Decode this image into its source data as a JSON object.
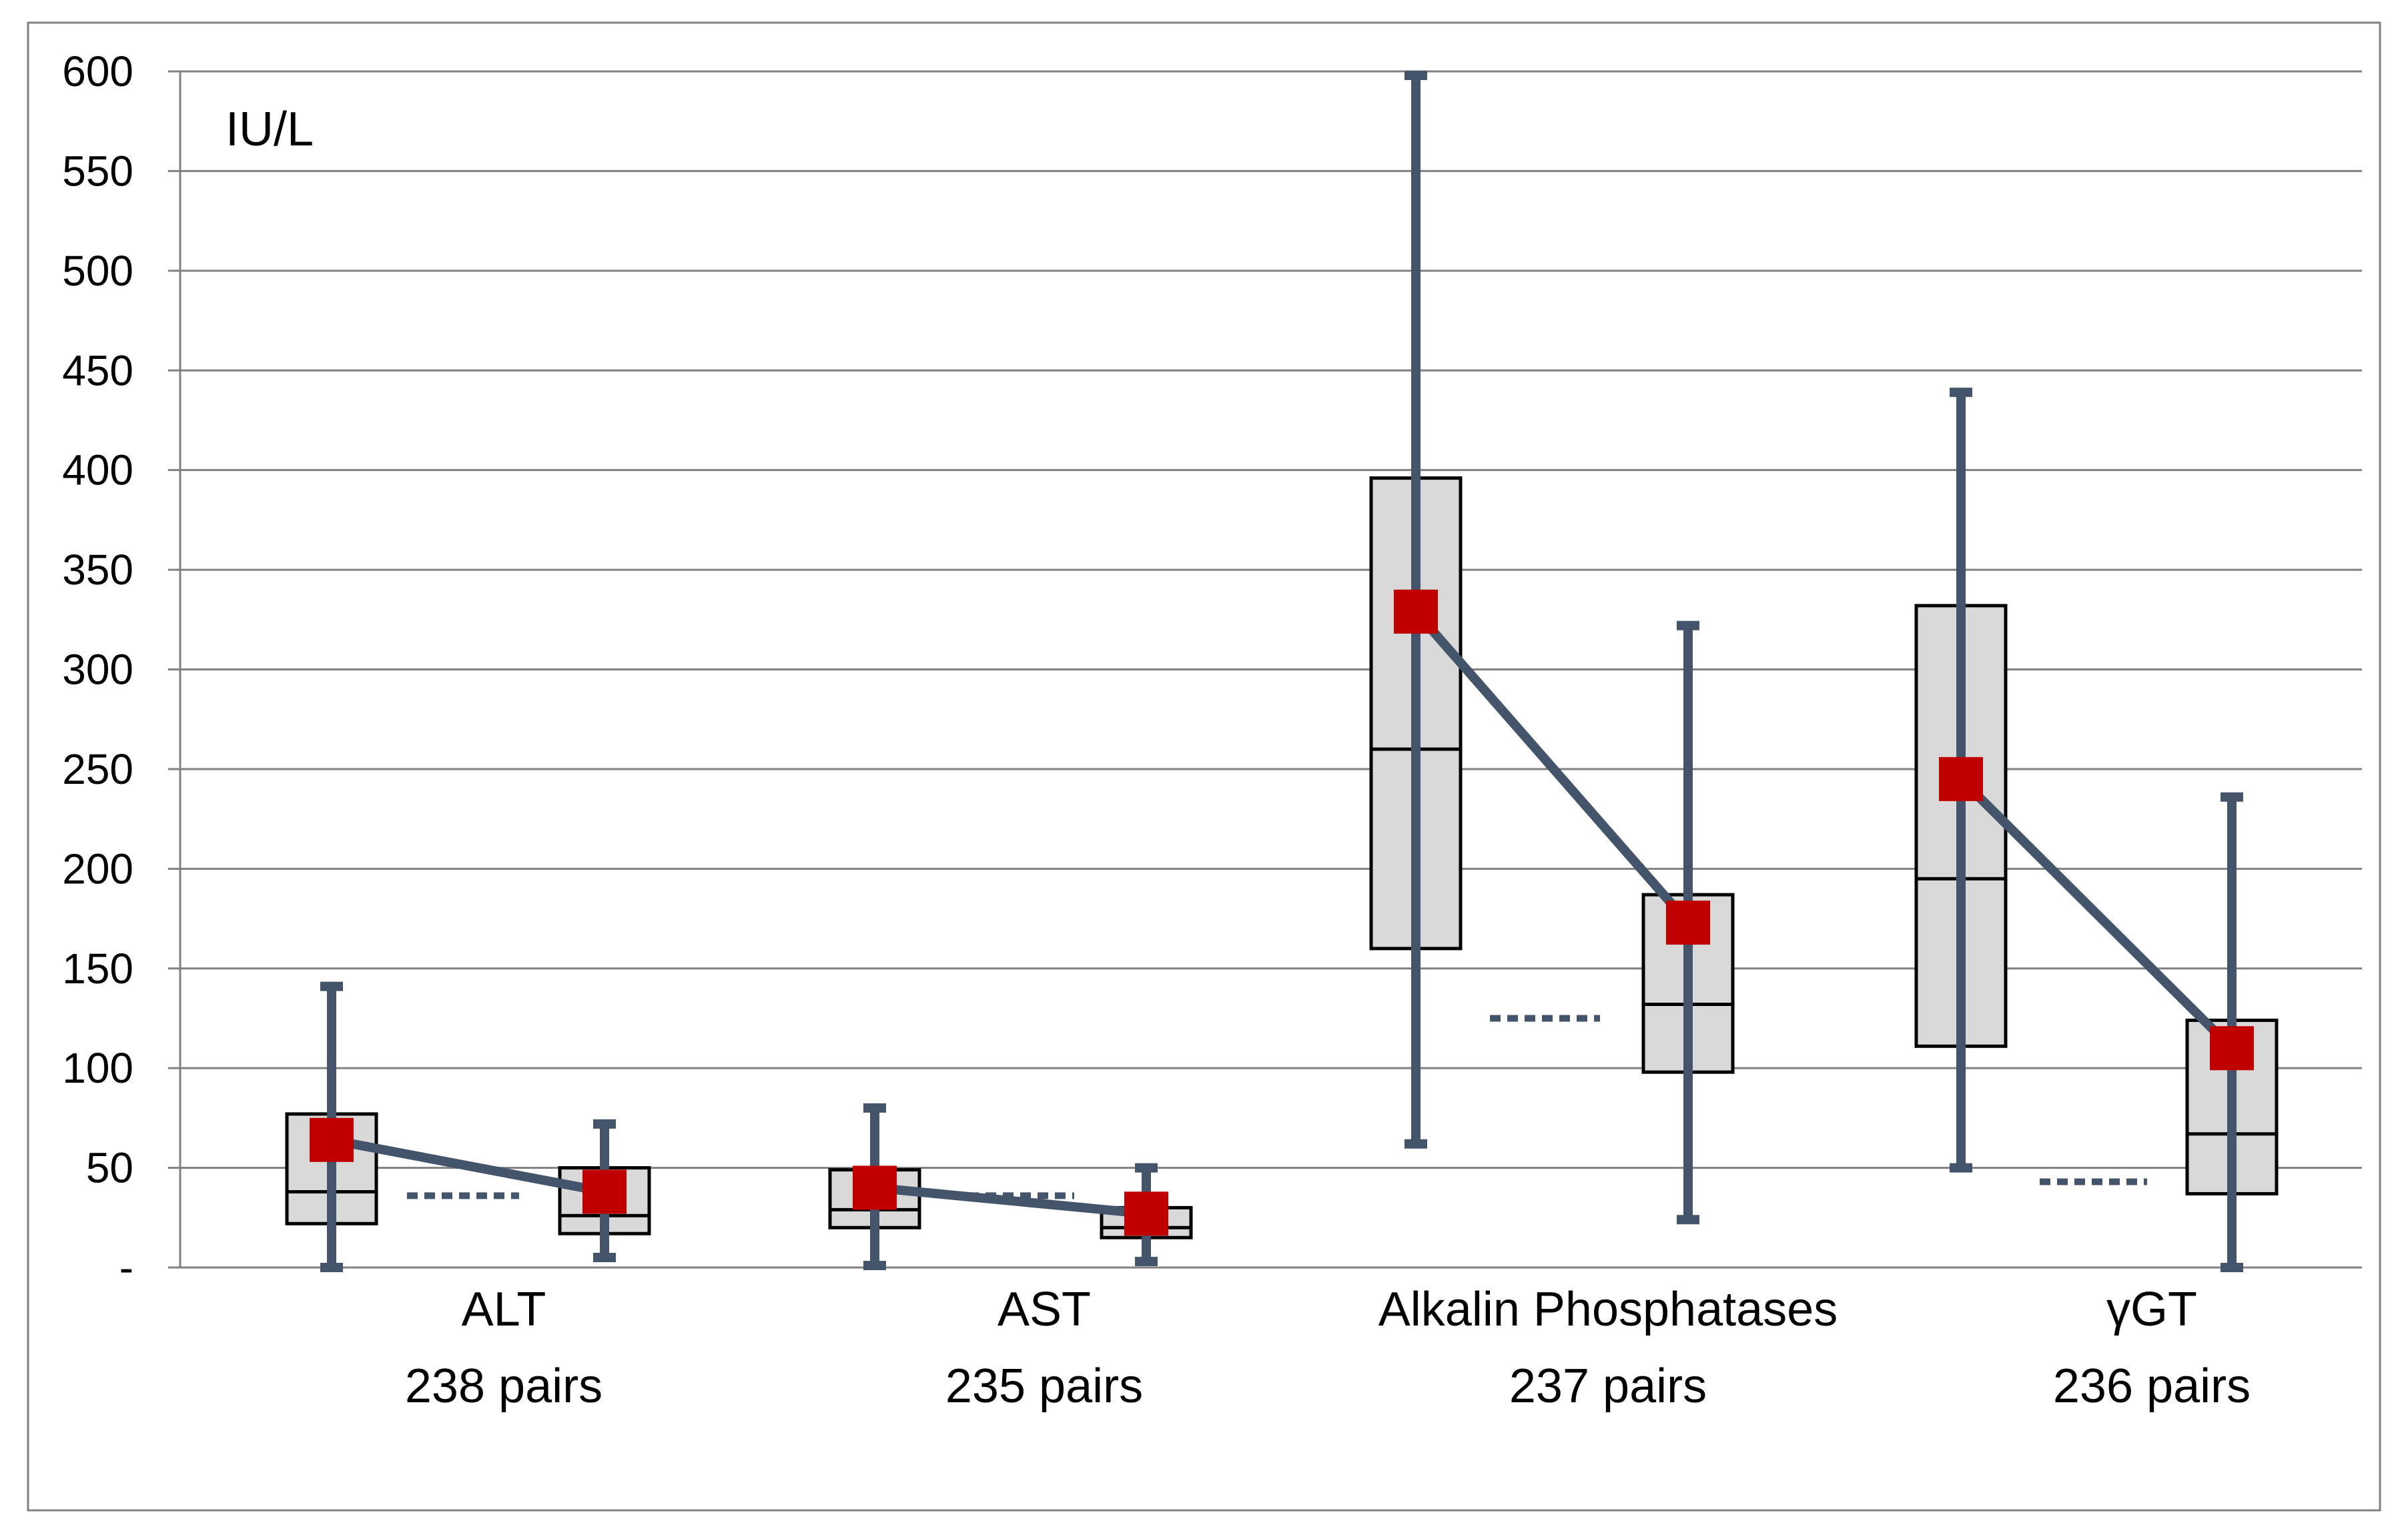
{
  "chart_data": {
    "type": "boxplot",
    "unit_label": "IU/L",
    "ylim": [
      0,
      600
    ],
    "y_ticks": [
      0,
      50,
      100,
      150,
      200,
      250,
      300,
      350,
      400,
      450,
      500,
      550,
      600
    ],
    "y_tick_labels": [
      "-",
      "50",
      "100",
      "150",
      "200",
      "250",
      "300",
      "350",
      "400",
      "450",
      "500",
      "550",
      "600"
    ],
    "grid": true,
    "groups": [
      {
        "name": "ALT",
        "pairs_label": "238 pairs",
        "boxes": [
          {
            "whisker_low": 0,
            "q1": 22,
            "median": 38,
            "q3": 77,
            "whisker_high": 141,
            "mean": 64
          },
          {
            "whisker_low": 5,
            "q1": 17,
            "median": 26,
            "q3": 50,
            "whisker_high": 72,
            "mean": 38
          }
        ],
        "reference": 36
      },
      {
        "name": "AST",
        "pairs_label": "235 pairs",
        "boxes": [
          {
            "whisker_low": 1,
            "q1": 20,
            "median": 29,
            "q3": 49,
            "whisker_high": 80,
            "mean": 40
          },
          {
            "whisker_low": 3,
            "q1": 15,
            "median": 20,
            "q3": 30,
            "whisker_high": 50,
            "mean": 27
          }
        ],
        "reference": 36
      },
      {
        "name": "Alkalin Phosphatases",
        "pairs_label": "237 pairs",
        "boxes": [
          {
            "whisker_low": 62,
            "q1": 160,
            "median": 260,
            "q3": 396,
            "whisker_high": 598,
            "mean": 329
          },
          {
            "whisker_low": 24,
            "q1": 98,
            "median": 132,
            "q3": 187,
            "whisker_high": 322,
            "mean": 173
          }
        ],
        "reference": 125
      },
      {
        "name": "γGT",
        "pairs_label": "236 pairs",
        "boxes": [
          {
            "whisker_low": 50,
            "q1": 111,
            "median": 195,
            "q3": 332,
            "whisker_high": 439,
            "mean": 245
          },
          {
            "whisker_low": 0,
            "q1": 37,
            "median": 67,
            "q3": 124,
            "whisker_high": 236,
            "mean": 110
          }
        ],
        "reference": 43
      }
    ],
    "colors": {
      "box_fill": "#d9d9d9",
      "box_stroke": "#000000",
      "whisker": "#44546a",
      "mean_marker": "#c00000",
      "grid": "#808080",
      "reference_line": "#44546a"
    }
  }
}
